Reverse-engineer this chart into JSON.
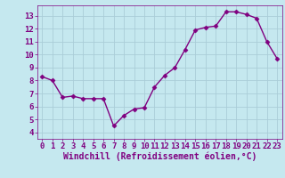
{
  "x": [
    0,
    1,
    2,
    3,
    4,
    5,
    6,
    7,
    8,
    9,
    10,
    11,
    12,
    13,
    14,
    15,
    16,
    17,
    18,
    19,
    20,
    21,
    22,
    23
  ],
  "y": [
    8.3,
    8.0,
    6.7,
    6.8,
    6.6,
    6.6,
    6.6,
    4.5,
    5.3,
    5.8,
    5.9,
    7.5,
    8.4,
    9.0,
    10.4,
    11.9,
    12.1,
    12.2,
    13.3,
    13.3,
    13.1,
    12.8,
    11.0,
    9.7
  ],
  "line_color": "#800080",
  "marker": "D",
  "marker_size": 2.5,
  "bg_color": "#c5e8ef",
  "grid_color": "#aacdd8",
  "xlabel": "Windchill (Refroidissement éolien,°C)",
  "xlim": [
    -0.5,
    23.5
  ],
  "ylim": [
    3.5,
    13.8
  ],
  "yticks": [
    4,
    5,
    6,
    7,
    8,
    9,
    10,
    11,
    12,
    13
  ],
  "xticks": [
    0,
    1,
    2,
    3,
    4,
    5,
    6,
    7,
    8,
    9,
    10,
    11,
    12,
    13,
    14,
    15,
    16,
    17,
    18,
    19,
    20,
    21,
    22,
    23
  ],
  "tick_color": "#800080",
  "label_color": "#800080",
  "font_size": 6.5,
  "xlabel_fontsize": 7.0,
  "linewidth": 1.0
}
